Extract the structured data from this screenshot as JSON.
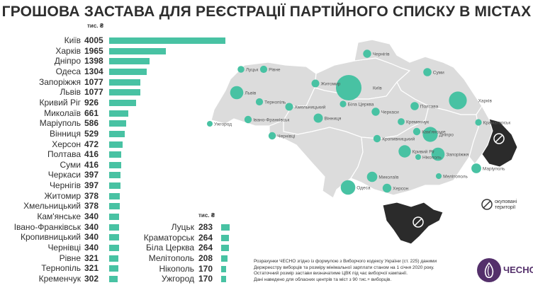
{
  "chart_data": {
    "type": "bar",
    "title": "ГРОШОВА ЗАСТАВА ДЛЯ РЕЄСТРАЦІЇ ПАРТІЙНОГО СПИСКУ В МІСТАХ",
    "unit": "тис. ₴",
    "series_left": [
      {
        "name": "Київ",
        "value": 4005
      },
      {
        "name": "Харків",
        "value": 1965
      },
      {
        "name": "Дніпро",
        "value": 1398
      },
      {
        "name": "Одеса",
        "value": 1304
      },
      {
        "name": "Запоріжжя",
        "value": 1077
      },
      {
        "name": "Львів",
        "value": 1077
      },
      {
        "name": "Кривий Ріг",
        "value": 926
      },
      {
        "name": "Миколаїв",
        "value": 661
      },
      {
        "name": "Маріуполь",
        "value": 586
      },
      {
        "name": "Вінниця",
        "value": 529
      },
      {
        "name": "Херсон",
        "value": 472
      },
      {
        "name": "Полтава",
        "value": 416
      },
      {
        "name": "Суми",
        "value": 416
      },
      {
        "name": "Черкаси",
        "value": 397
      },
      {
        "name": "Чернігів",
        "value": 397
      },
      {
        "name": "Житомир",
        "value": 378
      },
      {
        "name": "Хмельницький",
        "value": 378
      },
      {
        "name": "Кам'янське",
        "value": 340
      },
      {
        "name": "Івано-Франківськ",
        "value": 340
      },
      {
        "name": "Кропивницький",
        "value": 340
      },
      {
        "name": "Чернівці",
        "value": 340
      },
      {
        "name": "Рівне",
        "value": 321
      },
      {
        "name": "Тернопіль",
        "value": 321
      },
      {
        "name": "Кременчук",
        "value": 302
      }
    ],
    "series_right": [
      {
        "name": "Луцьк",
        "value": 283
      },
      {
        "name": "Краматорськ",
        "value": 264
      },
      {
        "name": "Біла Церква",
        "value": 264
      },
      {
        "name": "Мелітополь",
        "value": 208
      },
      {
        "name": "Нікополь",
        "value": 170
      },
      {
        "name": "Ужгород",
        "value": 170
      }
    ]
  },
  "map": {
    "labels": [
      {
        "name": "Київ",
        "value": 4005
      },
      {
        "name": "Харків",
        "value": 1965
      },
      {
        "name": "Дніпро",
        "value": 1398
      },
      {
        "name": "Одеса",
        "value": 1304
      },
      {
        "name": "Запоріжжя",
        "value": 1077
      },
      {
        "name": "Львів",
        "value": 1077
      },
      {
        "name": "Кривий Ріг",
        "value": 926
      },
      {
        "name": "Миколаїв",
        "value": 661
      },
      {
        "name": "Маріуполь",
        "value": 586
      },
      {
        "name": "Вінниця",
        "value": 529
      },
      {
        "name": "Херсон",
        "value": 472
      },
      {
        "name": "Полтава",
        "value": 416
      },
      {
        "name": "Суми",
        "value": 416
      },
      {
        "name": "Черкаси",
        "value": 397
      },
      {
        "name": "Чернігів",
        "value": 397
      },
      {
        "name": "Житомир",
        "value": 378
      },
      {
        "name": "Хмельницький",
        "value": 378
      },
      {
        "name": "Кам'янське",
        "value": 340
      },
      {
        "name": "Івано-Франківськ",
        "value": 340
      },
      {
        "name": "Кропивницький",
        "value": 340
      },
      {
        "name": "Чернівці",
        "value": 340
      },
      {
        "name": "Рівне",
        "value": 321
      },
      {
        "name": "Тернопіль",
        "value": 321
      },
      {
        "name": "Кременчук",
        "value": 302
      },
      {
        "name": "Луцьк",
        "value": 283
      },
      {
        "name": "Краматорськ",
        "value": 264
      },
      {
        "name": "Біла Церква",
        "value": 264
      },
      {
        "name": "Мелітополь",
        "value": 208
      },
      {
        "name": "Нікополь",
        "value": 170
      },
      {
        "name": "Ужгород",
        "value": 170
      }
    ],
    "occupied_label": "окуповані території",
    "colors": {
      "bubble": "#48c2a3",
      "region": "#dcdcdc",
      "border": "#ffffff",
      "occupied": "#2b2b2b"
    }
  },
  "footnote": [
    "Розрахунки ЧЕСНО згідно із формулою з Виборчого кодексу України (ст. 225) даними",
    "Держреєстру виборців та розміру мінімальної зарплати станом на 1 січня 2020 року.",
    "Остаточний розмір застави визначатиме ЦВК під час виборчої кампанії.",
    "Дані наведено для обласних центрів та міст з 90 тис.+ виборців."
  ],
  "logo": {
    "text": "ЧЕСНО",
    "color": "#54306b"
  }
}
